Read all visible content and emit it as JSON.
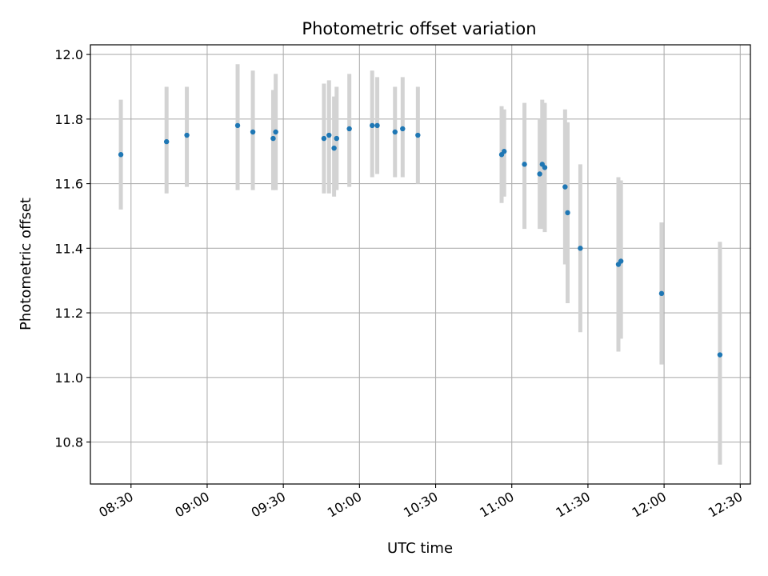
{
  "chart_data": {
    "type": "scatter",
    "title": "Photometric offset variation",
    "xlabel": "UTC time",
    "ylabel": "Photometric offset",
    "x_axis": {
      "kind": "time",
      "range": [
        "08:14",
        "12:34"
      ],
      "ticks": [
        "08:30",
        "09:00",
        "09:30",
        "10:00",
        "10:30",
        "11:00",
        "11:30",
        "12:00",
        "12:30"
      ]
    },
    "y_axis": {
      "range": [
        10.67,
        12.03
      ],
      "ticks": [
        "10.8",
        "11.0",
        "11.2",
        "11.4",
        "11.6",
        "11.8",
        "12.0"
      ]
    },
    "grid": true,
    "point_color": "#1f77b4",
    "errorbar_color": "#d3d3d3",
    "points": [
      {
        "x": "08:26",
        "y": 11.69,
        "low": 11.52,
        "high": 11.86
      },
      {
        "x": "08:44",
        "y": 11.73,
        "low": 11.57,
        "high": 11.9
      },
      {
        "x": "08:52",
        "y": 11.75,
        "low": 11.59,
        "high": 11.9
      },
      {
        "x": "09:12",
        "y": 11.78,
        "low": 11.58,
        "high": 11.97
      },
      {
        "x": "09:18",
        "y": 11.76,
        "low": 11.58,
        "high": 11.95
      },
      {
        "x": "09:26",
        "y": 11.74,
        "low": 11.58,
        "high": 11.89
      },
      {
        "x": "09:27",
        "y": 11.76,
        "low": 11.58,
        "high": 11.94
      },
      {
        "x": "09:46",
        "y": 11.74,
        "low": 11.57,
        "high": 11.91
      },
      {
        "x": "09:48",
        "y": 11.75,
        "low": 11.57,
        "high": 11.92
      },
      {
        "x": "09:50",
        "y": 11.71,
        "low": 11.56,
        "high": 11.87
      },
      {
        "x": "09:51",
        "y": 11.74,
        "low": 11.58,
        "high": 11.9
      },
      {
        "x": "09:56",
        "y": 11.77,
        "low": 11.59,
        "high": 11.94
      },
      {
        "x": "10:05",
        "y": 11.78,
        "low": 11.62,
        "high": 11.95
      },
      {
        "x": "10:07",
        "y": 11.78,
        "low": 11.63,
        "high": 11.93
      },
      {
        "x": "10:14",
        "y": 11.76,
        "low": 11.62,
        "high": 11.9
      },
      {
        "x": "10:17",
        "y": 11.77,
        "low": 11.62,
        "high": 11.93
      },
      {
        "x": "10:23",
        "y": 11.75,
        "low": 11.6,
        "high": 11.9
      },
      {
        "x": "10:56",
        "y": 11.69,
        "low": 11.54,
        "high": 11.84
      },
      {
        "x": "10:57",
        "y": 11.7,
        "low": 11.56,
        "high": 11.83
      },
      {
        "x": "11:05",
        "y": 11.66,
        "low": 11.46,
        "high": 11.85
      },
      {
        "x": "11:11",
        "y": 11.63,
        "low": 11.46,
        "high": 11.8
      },
      {
        "x": "11:12",
        "y": 11.66,
        "low": 11.46,
        "high": 11.86
      },
      {
        "x": "11:13",
        "y": 11.65,
        "low": 11.45,
        "high": 11.85
      },
      {
        "x": "11:21",
        "y": 11.59,
        "low": 11.35,
        "high": 11.83
      },
      {
        "x": "11:22",
        "y": 11.51,
        "low": 11.23,
        "high": 11.79
      },
      {
        "x": "11:27",
        "y": 11.4,
        "low": 11.14,
        "high": 11.66
      },
      {
        "x": "11:42",
        "y": 11.35,
        "low": 11.08,
        "high": 11.62
      },
      {
        "x": "11:43",
        "y": 11.36,
        "low": 11.12,
        "high": 11.61
      },
      {
        "x": "11:59",
        "y": 11.26,
        "low": 11.04,
        "high": 11.48
      },
      {
        "x": "12:22",
        "y": 11.07,
        "low": 10.73,
        "high": 11.42
      }
    ]
  }
}
